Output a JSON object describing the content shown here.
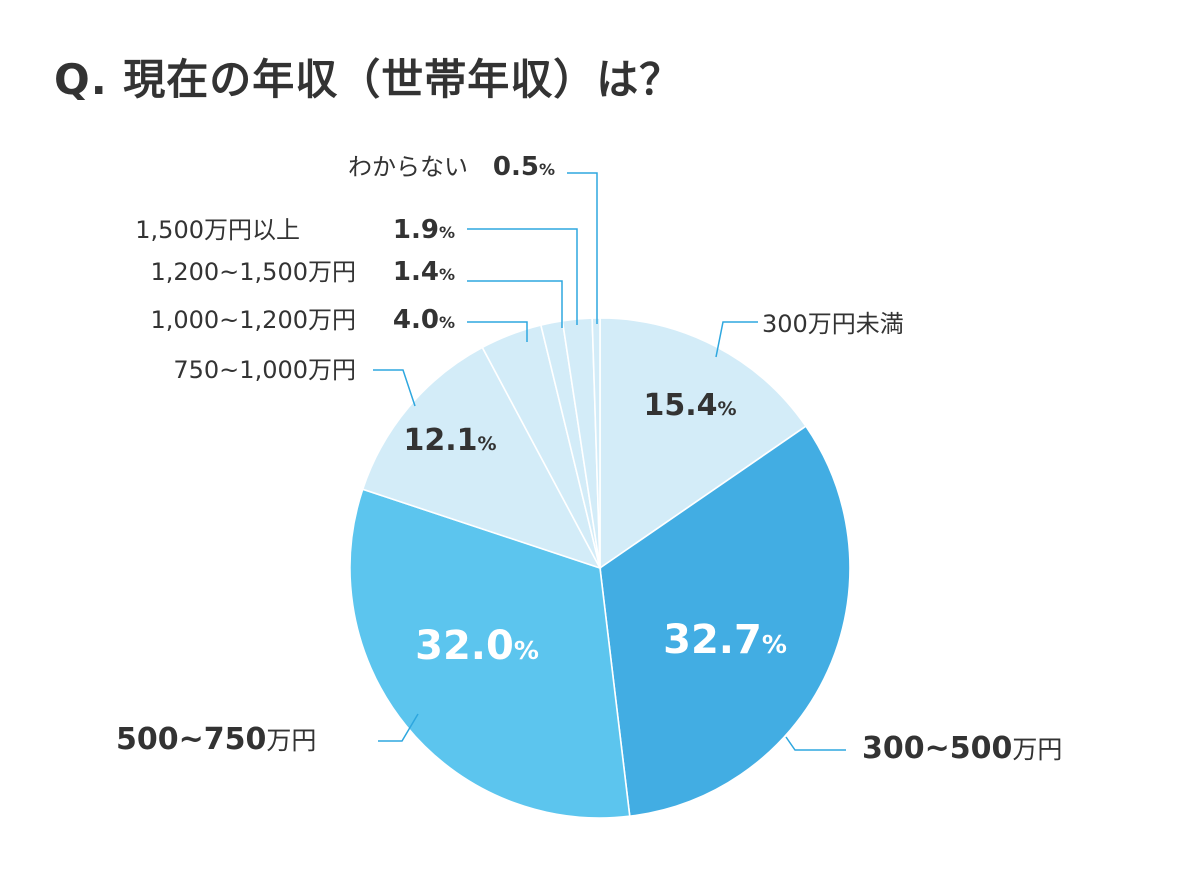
{
  "title": "Q. 現在の年収（世帯年収）は？",
  "colors": {
    "light": "#d3ecf8",
    "medium": "#5cc5ee",
    "strong": "#42ade3",
    "leader": "#2ea7df",
    "text_dark": "#333333",
    "text_white": "#ffffff"
  },
  "chart_data": {
    "type": "pie",
    "title": "Q. 現在の年収（世帯年収）は？",
    "unit": "%",
    "slices": [
      {
        "label": "300万円未満",
        "value": 15.4,
        "value_text": "15.4",
        "color": "#d3ecf8"
      },
      {
        "label": "300~500万円",
        "value": 32.7,
        "value_text": "32.7",
        "color": "#42ade3"
      },
      {
        "label": "500~750万円",
        "value": 32.0,
        "value_text": "32.0",
        "color": "#5cc5ee"
      },
      {
        "label": "750~1,000万円",
        "value": 12.1,
        "value_text": "12.1",
        "color": "#d3ecf8"
      },
      {
        "label": "1,000~1,200万円",
        "value": 4.0,
        "value_text": "4.0",
        "color": "#d3ecf8"
      },
      {
        "label": "1,200~1,500万円",
        "value": 1.4,
        "value_text": "1.4",
        "color": "#d3ecf8"
      },
      {
        "label": "1,500万円以上",
        "value": 1.9,
        "value_text": "1.9",
        "color": "#d3ecf8"
      },
      {
        "label": "わからない",
        "value": 0.5,
        "value_text": "0.5",
        "color": "#d3ecf8"
      }
    ]
  }
}
